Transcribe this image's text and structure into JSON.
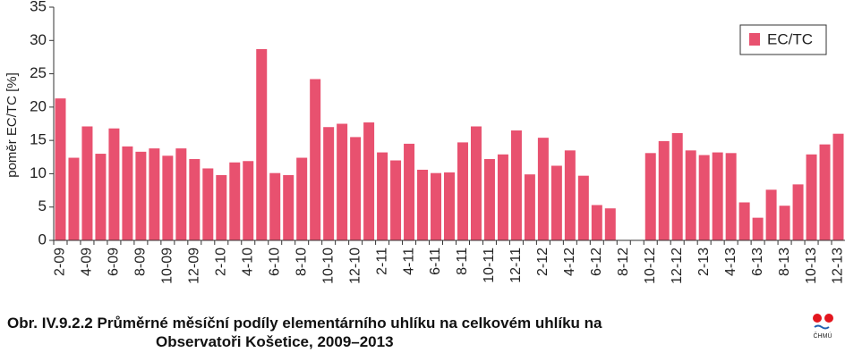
{
  "chart_data": {
    "type": "bar",
    "ylabel": "poměr EC/TC [%]",
    "caption": [
      "Obr. IV.9.2.2  Průměrné měsíční podíly elementárního uhlíku na celkovém uhlíku na",
      "Observatoři Košetice, 2009–2013"
    ],
    "logo": "ČHMÚ",
    "categories": [
      "2-09",
      null,
      "4-09",
      null,
      "6-09",
      null,
      "8-09",
      null,
      "10-09",
      null,
      "12-09",
      null,
      "2-10",
      null,
      "4-10",
      null,
      "6-10",
      null,
      "8-10",
      null,
      "10-10",
      null,
      "12-10",
      null,
      "2-11",
      null,
      "4-11",
      null,
      "6-11",
      null,
      "8-11",
      null,
      "10-11",
      null,
      "12-11",
      null,
      "2-12",
      null,
      "4-12",
      null,
      "6-12",
      null,
      "8-12",
      null,
      "10-12",
      null,
      "12-12",
      null,
      "2-13",
      null,
      "4-13",
      null,
      "6-13",
      null,
      "8-13",
      null,
      "10-13",
      null,
      "12-13"
    ],
    "series": [
      {
        "name": "EC/TC",
        "color": "#e8516f",
        "values": [
          21.3,
          12.4,
          17.1,
          13.0,
          16.8,
          14.1,
          13.3,
          13.8,
          12.7,
          13.8,
          12.2,
          10.8,
          9.8,
          11.7,
          11.9,
          28.7,
          10.1,
          9.8,
          12.4,
          24.2,
          17.0,
          17.5,
          15.5,
          17.7,
          13.2,
          12.0,
          14.5,
          10.6,
          10.1,
          10.2,
          14.7,
          17.1,
          12.2,
          12.9,
          16.5,
          9.9,
          15.4,
          11.2,
          13.5,
          9.7,
          5.3,
          4.8,
          null,
          null,
          13.1,
          14.9,
          16.1,
          13.5,
          12.8,
          13.2,
          13.1,
          5.7,
          3.4,
          7.6,
          5.2,
          8.4,
          12.9,
          14.4,
          16.0
        ]
      }
    ],
    "ylim": [
      0,
      35
    ],
    "yticks": [
      0,
      5,
      10,
      15,
      20,
      25,
      30,
      35
    ],
    "grid": false,
    "legend": "upper right"
  }
}
